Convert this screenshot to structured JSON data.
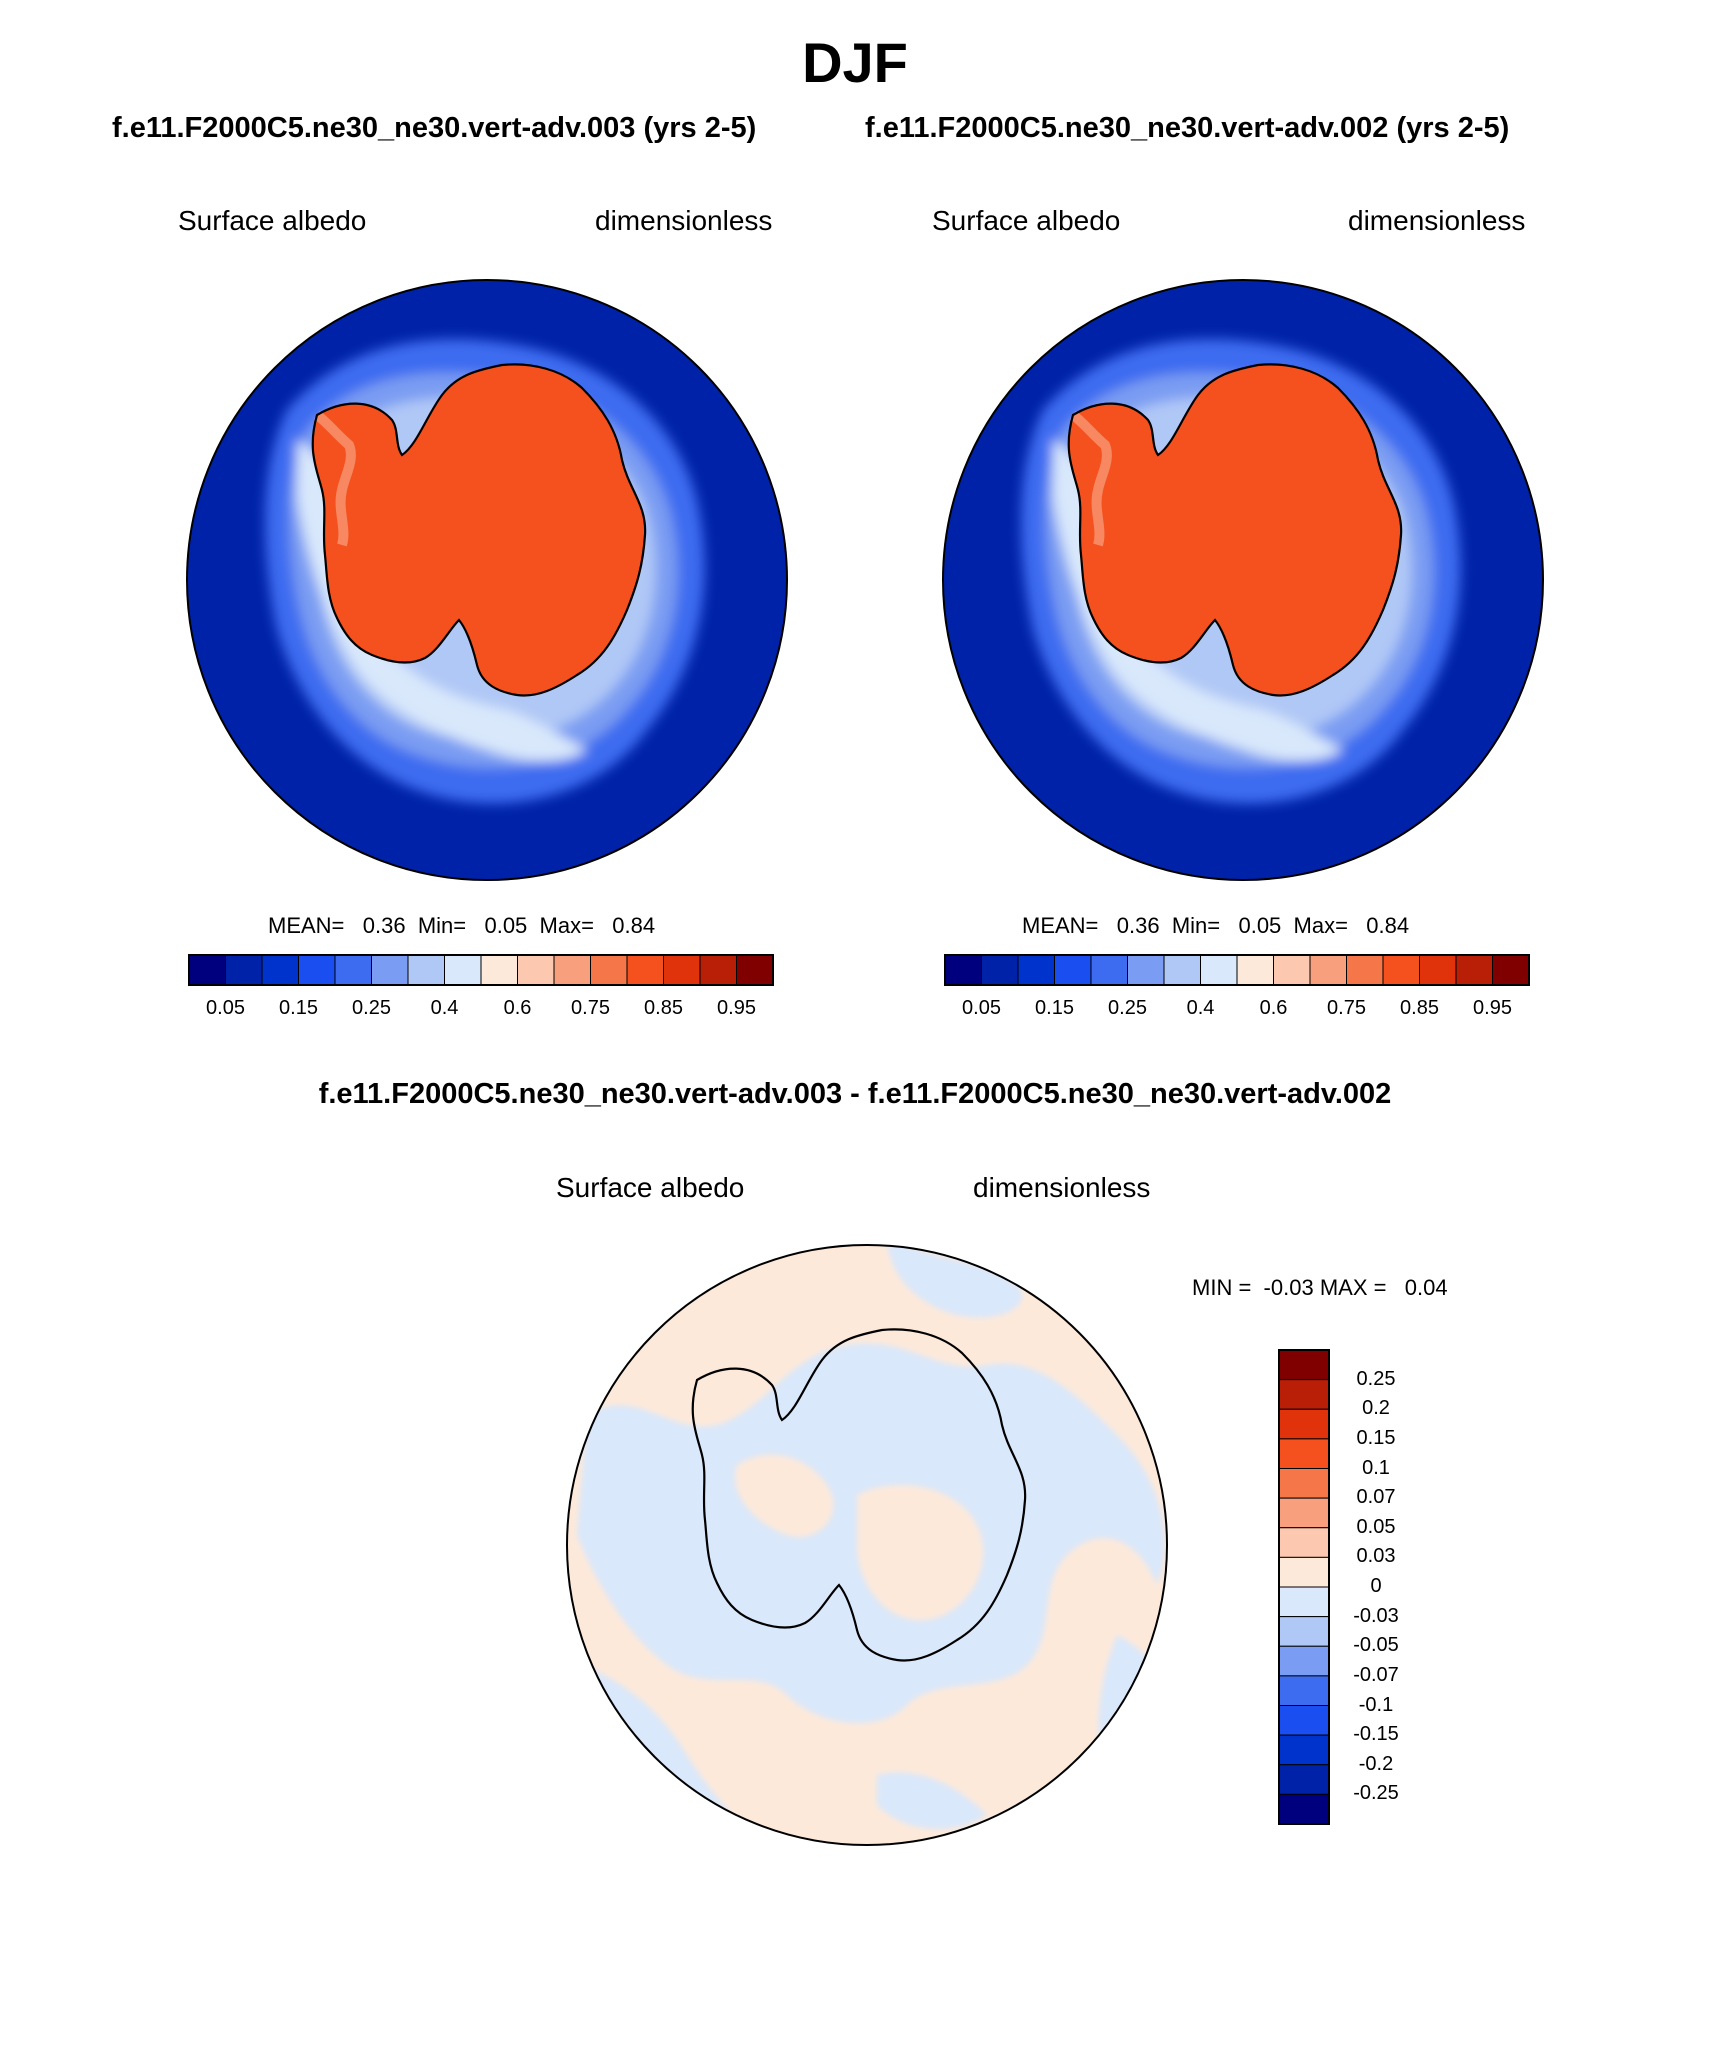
{
  "title": "DJF",
  "panels": [
    {
      "case": "f.e11.F2000C5.ne30_ne30.vert-adv.003 (yrs 2-5)",
      "variable": "Surface albedo",
      "units": "dimensionless",
      "stats": {
        "mean_label": "MEAN=",
        "mean": "0.36",
        "min_label": "Min=",
        "min": "0.05",
        "max_label": "Max=",
        "max": "0.84"
      }
    },
    {
      "case": "f.e11.F2000C5.ne30_ne30.vert-adv.002 (yrs 2-5)",
      "variable": "Surface albedo",
      "units": "dimensionless",
      "stats": {
        "mean_label": "MEAN=",
        "mean": "0.36",
        "min_label": "Min=",
        "min": "0.05",
        "max_label": "Max=",
        "max": "0.84"
      }
    }
  ],
  "diff": {
    "title": "f.e11.F2000C5.ne30_ne30.vert-adv.003 - f.e11.F2000C5.ne30_ne30.vert-adv.002",
    "variable": "Surface albedo",
    "units": "dimensionless",
    "minmax": {
      "min_label": "MIN =",
      "min": "-0.03",
      "max_label": "MAX =",
      "max": "0.04"
    }
  },
  "colorbar_main": {
    "colors": [
      "#00007f",
      "#0022a8",
      "#0033cc",
      "#1a4ef0",
      "#3d6cf0",
      "#7a9cf2",
      "#b0c8f6",
      "#d9e8fb",
      "#fde9da",
      "#fcc9b0",
      "#f8a07e",
      "#f57648",
      "#f4511e",
      "#e0330c",
      "#b91e06",
      "#800000"
    ],
    "ticks": [
      "0.05",
      "0.15",
      "0.25",
      "0.4",
      "0.6",
      "0.75",
      "0.85",
      "0.95"
    ]
  },
  "colorbar_diff": {
    "colors_top_to_bottom": [
      "#800000",
      "#b91e06",
      "#e0330c",
      "#f4511e",
      "#f57648",
      "#f8a07e",
      "#fcc9b0",
      "#fde9da",
      "#d9e8fb",
      "#b0c8f6",
      "#7a9cf2",
      "#3d6cf0",
      "#1a4ef0",
      "#0033cc",
      "#0022a8",
      "#00007f"
    ],
    "ticks_top_to_bottom": [
      "0.25",
      "0.2",
      "0.15",
      "0.1",
      "0.07",
      "0.05",
      "0.03",
      "0",
      "-0.03",
      "-0.05",
      "-0.07",
      "-0.1",
      "-0.15",
      "-0.2",
      "-0.25"
    ]
  }
}
